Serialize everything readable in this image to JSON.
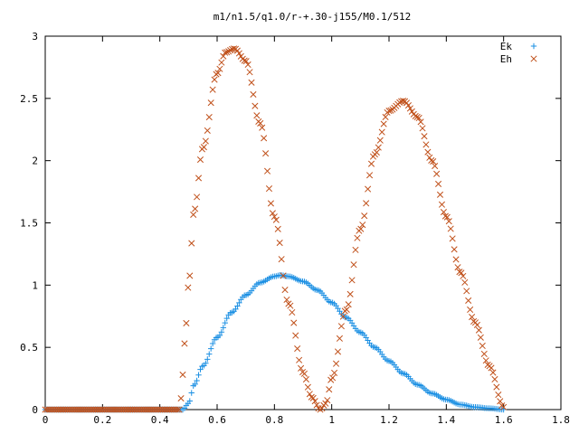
{
  "chart_data": {
    "type": "scatter",
    "title": "m1/n1.5/q1.0/r-+.30-j155/M0.1/512",
    "xlabel": "",
    "ylabel": "",
    "xlim": [
      0,
      1.8
    ],
    "ylim": [
      0,
      3
    ],
    "x_ticks": [
      "0",
      "0.2",
      "0.4",
      "0.6",
      "0.8",
      "1",
      "1.2",
      "1.4",
      "1.6",
      "1.8"
    ],
    "y_ticks": [
      "0",
      "0.5",
      "1",
      "1.5",
      "2",
      "2.5",
      "3"
    ],
    "grid": false,
    "legend_position": "top-right",
    "series": [
      {
        "name": "Ek",
        "marker": "+",
        "color": "#1a8fe3",
        "x": [
          0.0,
          0.1,
          0.2,
          0.3,
          0.4,
          0.48,
          0.5,
          0.52,
          0.55,
          0.6,
          0.65,
          0.7,
          0.75,
          0.8,
          0.82,
          0.85,
          0.9,
          0.95,
          1.0,
          1.05,
          1.1,
          1.15,
          1.2,
          1.25,
          1.3,
          1.35,
          1.4,
          1.45,
          1.5,
          1.55,
          1.6
        ],
        "y": [
          0.0,
          0.0,
          0.0,
          0.0,
          0.0,
          0.0,
          0.05,
          0.2,
          0.35,
          0.58,
          0.78,
          0.92,
          1.02,
          1.07,
          1.08,
          1.07,
          1.03,
          0.96,
          0.86,
          0.74,
          0.62,
          0.5,
          0.39,
          0.29,
          0.2,
          0.13,
          0.08,
          0.04,
          0.02,
          0.01,
          0.0
        ]
      },
      {
        "name": "Eh",
        "marker": "x",
        "color": "#c0501a",
        "x": [
          0.0,
          0.1,
          0.2,
          0.3,
          0.4,
          0.47,
          0.48,
          0.49,
          0.5,
          0.52,
          0.55,
          0.6,
          0.63,
          0.66,
          0.7,
          0.75,
          0.8,
          0.85,
          0.9,
          0.93,
          0.96,
          0.98,
          1.0,
          1.05,
          1.1,
          1.15,
          1.2,
          1.25,
          1.3,
          1.35,
          1.4,
          1.45,
          1.5,
          1.55,
          1.6
        ],
        "y": [
          0.0,
          0.0,
          0.0,
          0.0,
          0.0,
          0.0,
          0.28,
          0.65,
          1.0,
          1.6,
          2.1,
          2.7,
          2.87,
          2.9,
          2.8,
          2.3,
          1.55,
          0.85,
          0.3,
          0.1,
          0.0,
          0.05,
          0.25,
          0.8,
          1.45,
          2.05,
          2.4,
          2.48,
          2.35,
          2.0,
          1.55,
          1.1,
          0.7,
          0.35,
          0.02
        ]
      }
    ]
  }
}
